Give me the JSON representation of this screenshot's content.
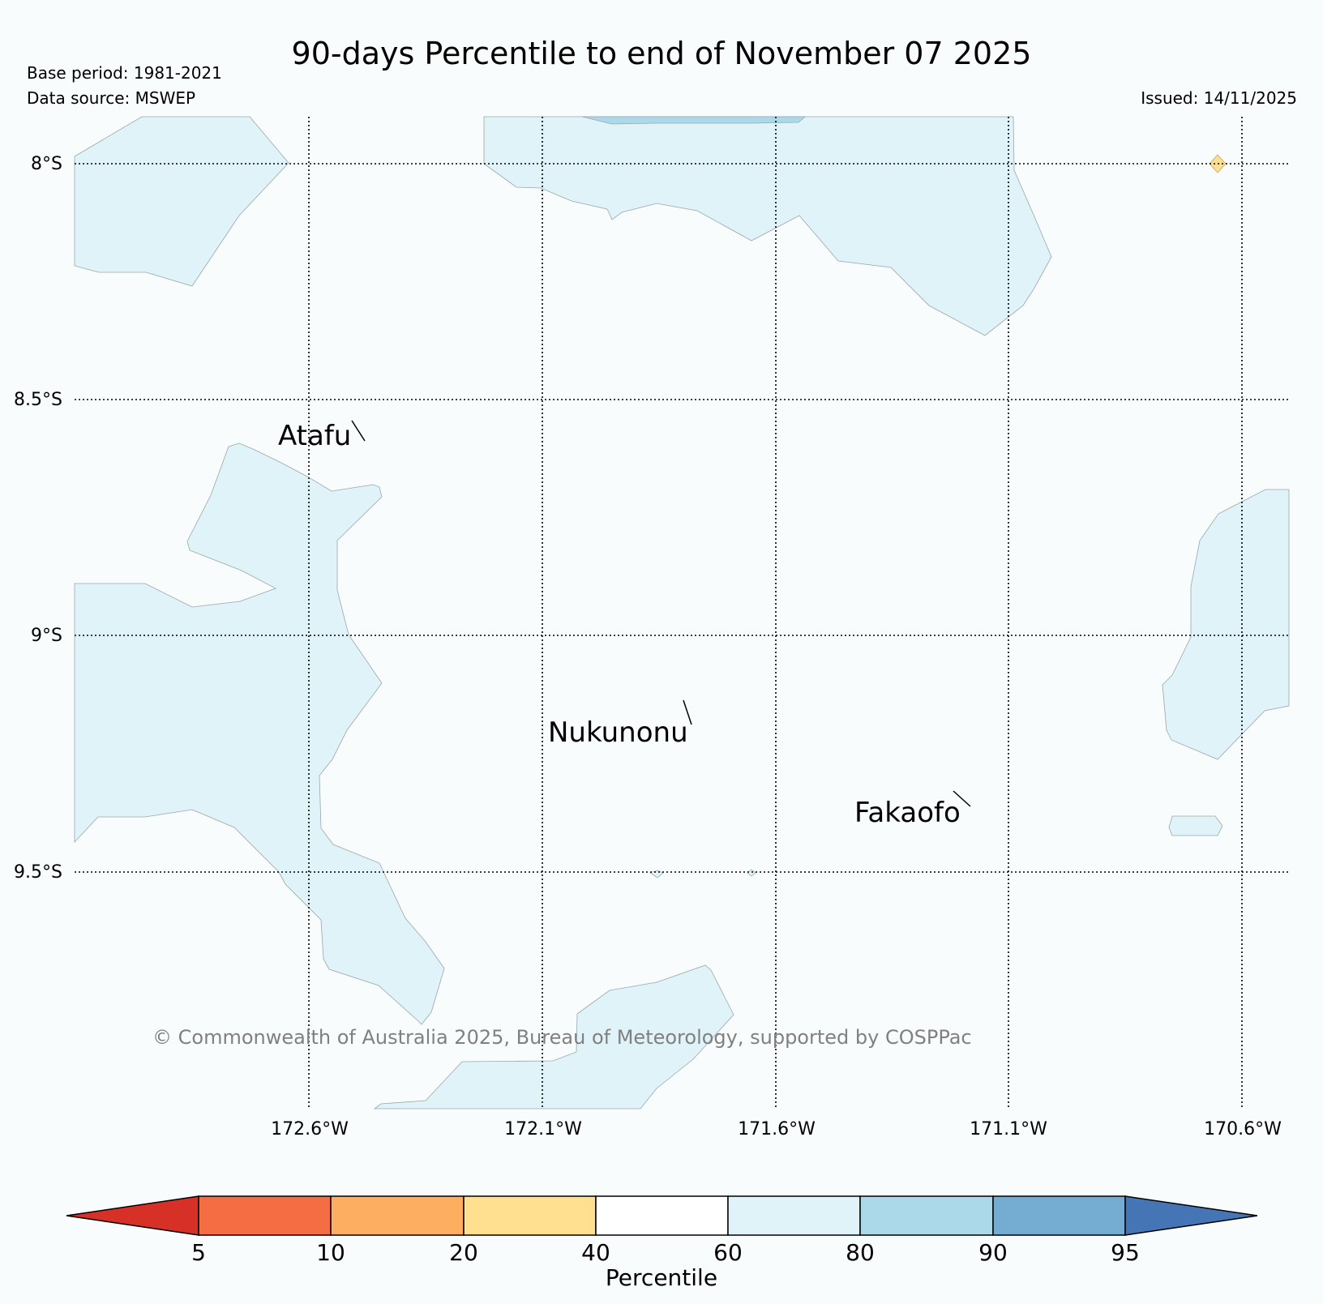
{
  "header": {
    "title": "90-days Percentile to end of November 07 2025",
    "base_period": "Base period: 1981-2021",
    "data_source": "Data source: MSWEP",
    "issued": "Issued: 14/11/2025"
  },
  "map": {
    "lat_labels": [
      "8°S",
      "8.5°S",
      "9°S",
      "9.5°S"
    ],
    "lon_labels": [
      "172.6°W",
      "172.1°W",
      "171.6°W",
      "171.1°W",
      "170.6°W"
    ],
    "places": [
      "Atafu",
      "Nukunonu",
      "Fakaofo"
    ],
    "copyright": "© Commonwealth of Australia 2025, Bureau of Meteorology, supported by COSPPac"
  },
  "colorbar": {
    "label": "Percentile",
    "ticks": [
      "5",
      "10",
      "20",
      "40",
      "60",
      "80",
      "90",
      "95"
    ],
    "colors": [
      "#d73027",
      "#f46d43",
      "#fdae61",
      "#fee090",
      "#ffffff",
      "#e0f3f8",
      "#abd9e9",
      "#74add1",
      "#4575b4"
    ]
  }
}
